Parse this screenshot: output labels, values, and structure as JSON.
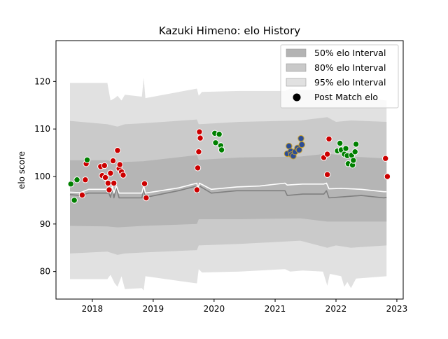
{
  "chart_data": {
    "type": "scatter",
    "title": "Kazuki Himeno: elo History",
    "xlabel": "",
    "ylabel": "elo score",
    "xlim": [
      "2017-05-28",
      "2023-02-08"
    ],
    "ylim": [
      74.2,
      128.6
    ],
    "x_ticks": [
      "2018",
      "2019",
      "2020",
      "2021",
      "2022",
      "2023"
    ],
    "x_tick_dates": [
      "2018-01-01",
      "2019-01-01",
      "2020-01-01",
      "2021-01-01",
      "2022-01-01",
      "2023-01-01"
    ],
    "y_ticks": [
      80,
      90,
      100,
      110,
      120
    ],
    "grid": false,
    "legend_position": "top-right",
    "legend": [
      {
        "label": "50% elo Interval",
        "kind": "band",
        "color": "#b3b3b3"
      },
      {
        "label": "80% elo Interval",
        "kind": "band",
        "color": "#c9c9c9"
      },
      {
        "label": "95% elo Interval",
        "kind": "band",
        "color": "#e1e1e1"
      },
      {
        "label": "Post Match elo",
        "kind": "marker",
        "color": "#000000"
      }
    ],
    "colors": {
      "band95": "#e1e1e1",
      "band80": "#cacaca",
      "band50": "#b5b5b5",
      "median_line": "#7f7f7f",
      "mean_line": "#ffffff",
      "win": "#008000",
      "loss": "#cc0000",
      "highlight": "#2c4d96",
      "highlight_edge": "#c8a02a"
    },
    "series": [
      {
        "role": "band95",
        "points": [
          [
            "2017-08-20",
            78.4,
            119.7
          ],
          [
            "2018-04-01",
            78.4,
            119.7
          ],
          [
            "2018-04-20",
            79.3,
            116.0
          ],
          [
            "2018-05-15",
            77.5,
            116.5
          ],
          [
            "2018-06-01",
            76.8,
            117.0
          ],
          [
            "2018-06-25",
            79.0,
            116.0
          ],
          [
            "2018-07-15",
            76.3,
            117.2
          ],
          [
            "2018-10-25",
            76.5,
            116.8
          ],
          [
            "2018-11-05",
            76.0,
            120.8
          ],
          [
            "2018-11-15",
            79.0,
            116.5
          ],
          [
            "2019-09-20",
            77.5,
            118.5
          ],
          [
            "2019-10-01",
            80.5,
            117.0
          ],
          [
            "2019-10-20",
            79.8,
            117.8
          ],
          [
            "2020-06-01",
            80.0,
            118.0
          ],
          [
            "2021-03-01",
            80.5,
            118.0
          ],
          [
            "2021-04-01",
            80.0,
            118.5
          ],
          [
            "2021-06-15",
            80.2,
            118.2
          ],
          [
            "2021-10-15",
            80.0,
            118.3
          ],
          [
            "2021-11-10",
            77.0,
            119.5
          ],
          [
            "2021-11-25",
            79.5,
            116.5
          ],
          [
            "2022-02-01",
            79.0,
            117.5
          ],
          [
            "2022-02-20",
            76.8,
            116.8
          ],
          [
            "2022-03-10",
            77.8,
            117.2
          ],
          [
            "2022-04-01",
            76.5,
            117.0
          ],
          [
            "2022-05-01",
            78.5,
            116.8
          ],
          [
            "2022-10-31",
            79.0,
            116.0
          ]
        ]
      },
      {
        "role": "band80",
        "points": [
          [
            "2017-08-20",
            83.8,
            111.7
          ],
          [
            "2018-04-01",
            84.2,
            111.0
          ],
          [
            "2018-06-01",
            83.5,
            110.5
          ],
          [
            "2018-07-15",
            83.8,
            111.0
          ],
          [
            "2018-11-01",
            84.0,
            111.2
          ],
          [
            "2019-09-20",
            84.5,
            112.0
          ],
          [
            "2019-10-01",
            85.5,
            111.0
          ],
          [
            "2020-06-01",
            85.8,
            111.5
          ],
          [
            "2021-06-01",
            86.5,
            111.8
          ],
          [
            "2021-11-10",
            85.0,
            112.5
          ],
          [
            "2022-01-01",
            85.5,
            111.5
          ],
          [
            "2022-04-01",
            85.0,
            111.8
          ],
          [
            "2022-10-31",
            85.5,
            111.5
          ]
        ]
      },
      {
        "role": "band50",
        "points": [
          [
            "2017-08-20",
            89.6,
            103.4
          ],
          [
            "2018-04-01",
            89.5,
            103.4
          ],
          [
            "2018-06-01",
            89.3,
            103.0
          ],
          [
            "2018-11-01",
            89.6,
            103.2
          ],
          [
            "2019-09-20",
            90.0,
            104.5
          ],
          [
            "2019-10-01",
            91.0,
            103.5
          ],
          [
            "2020-06-01",
            91.0,
            104.0
          ],
          [
            "2021-06-01",
            91.2,
            104.2
          ],
          [
            "2021-11-10",
            90.5,
            104.8
          ],
          [
            "2022-04-01",
            90.5,
            104.2
          ],
          [
            "2022-10-31",
            90.5,
            103.8
          ]
        ]
      },
      {
        "role": "median",
        "points": [
          [
            "2017-08-20",
            96.2
          ],
          [
            "2017-10-20",
            96.0
          ],
          [
            "2017-12-10",
            96.5
          ],
          [
            "2018-04-10",
            96.5
          ],
          [
            "2018-04-20",
            95.6
          ],
          [
            "2018-05-01",
            97.5
          ],
          [
            "2018-05-10",
            95.5
          ],
          [
            "2018-05-25",
            97.6
          ],
          [
            "2018-06-10",
            95.5
          ],
          [
            "2018-10-25",
            95.5
          ],
          [
            "2018-11-05",
            97.5
          ],
          [
            "2018-11-15",
            95.6
          ],
          [
            "2019-06-01",
            97.0
          ],
          [
            "2019-09-20",
            98.0
          ],
          [
            "2019-09-25",
            96.5
          ],
          [
            "2019-10-05",
            98.0
          ],
          [
            "2019-12-15",
            96.5
          ],
          [
            "2020-05-15",
            97.0
          ],
          [
            "2020-10-01",
            97.0
          ],
          [
            "2021-03-01",
            97.0
          ],
          [
            "2021-03-15",
            96.0
          ],
          [
            "2021-06-15",
            96.3
          ],
          [
            "2021-10-20",
            96.3
          ],
          [
            "2021-11-05",
            97.0
          ],
          [
            "2021-11-20",
            95.5
          ],
          [
            "2022-02-01",
            95.7
          ],
          [
            "2022-06-01",
            96.0
          ],
          [
            "2022-10-15",
            95.5
          ],
          [
            "2022-10-31",
            95.6
          ]
        ]
      },
      {
        "role": "mean",
        "points": [
          [
            "2017-08-20",
            96.7
          ],
          [
            "2017-10-20",
            96.6
          ],
          [
            "2017-12-10",
            97.3
          ],
          [
            "2018-04-10",
            97.3
          ],
          [
            "2018-04-20",
            96.5
          ],
          [
            "2018-05-01",
            98.0
          ],
          [
            "2018-05-10",
            96.5
          ],
          [
            "2018-05-25",
            98.0
          ],
          [
            "2018-06-10",
            96.5
          ],
          [
            "2018-10-25",
            96.5
          ],
          [
            "2018-11-05",
            98.0
          ],
          [
            "2018-11-15",
            96.5
          ],
          [
            "2019-06-01",
            97.6
          ],
          [
            "2019-09-20",
            98.6
          ],
          [
            "2019-09-25",
            97.2
          ],
          [
            "2019-10-05",
            98.6
          ],
          [
            "2019-12-15",
            97.3
          ],
          [
            "2020-05-15",
            97.8
          ],
          [
            "2020-10-01",
            98.0
          ],
          [
            "2021-03-01",
            98.6
          ],
          [
            "2021-03-15",
            98.2
          ],
          [
            "2021-06-15",
            98.4
          ],
          [
            "2021-10-20",
            98.4
          ],
          [
            "2021-11-05",
            98.6
          ],
          [
            "2021-11-20",
            97.4
          ],
          [
            "2022-02-01",
            97.5
          ],
          [
            "2022-06-01",
            97.3
          ],
          [
            "2022-10-15",
            96.8
          ],
          [
            "2022-10-31",
            96.8
          ]
        ]
      }
    ],
    "matches": [
      {
        "x": "2017-08-25",
        "y": 98.4,
        "result": "win"
      },
      {
        "x": "2017-09-15",
        "y": 95.0,
        "result": "win"
      },
      {
        "x": "2017-10-01",
        "y": 99.3,
        "result": "win"
      },
      {
        "x": "2017-11-01",
        "y": 96.1,
        "result": "loss"
      },
      {
        "x": "2017-11-20",
        "y": 99.3,
        "result": "loss"
      },
      {
        "x": "2017-11-25",
        "y": 102.7,
        "result": "loss"
      },
      {
        "x": "2017-12-01",
        "y": 103.5,
        "result": "win"
      },
      {
        "x": "2018-02-20",
        "y": 102.1,
        "result": "loss"
      },
      {
        "x": "2018-03-01",
        "y": 100.2,
        "result": "loss"
      },
      {
        "x": "2018-03-15",
        "y": 102.3,
        "result": "loss"
      },
      {
        "x": "2018-03-20",
        "y": 99.8,
        "result": "loss"
      },
      {
        "x": "2018-04-05",
        "y": 98.6,
        "result": "loss"
      },
      {
        "x": "2018-04-12",
        "y": 97.2,
        "result": "loss"
      },
      {
        "x": "2018-04-20",
        "y": 100.7,
        "result": "loss"
      },
      {
        "x": "2018-05-05",
        "y": 103.3,
        "result": "loss"
      },
      {
        "x": "2018-05-10",
        "y": 98.6,
        "result": "loss"
      },
      {
        "x": "2018-06-01",
        "y": 105.5,
        "result": "loss"
      },
      {
        "x": "2018-06-10",
        "y": 101.7,
        "result": "loss"
      },
      {
        "x": "2018-06-15",
        "y": 102.5,
        "result": "loss"
      },
      {
        "x": "2018-06-25",
        "y": 101.0,
        "result": "loss"
      },
      {
        "x": "2018-07-05",
        "y": 100.3,
        "result": "loss"
      },
      {
        "x": "2018-11-10",
        "y": 98.5,
        "result": "loss"
      },
      {
        "x": "2018-11-20",
        "y": 95.5,
        "result": "loss"
      },
      {
        "x": "2019-09-20",
        "y": 97.2,
        "result": "loss"
      },
      {
        "x": "2019-09-25",
        "y": 101.8,
        "result": "loss"
      },
      {
        "x": "2019-10-01",
        "y": 105.2,
        "result": "loss"
      },
      {
        "x": "2019-10-05",
        "y": 109.4,
        "result": "loss"
      },
      {
        "x": "2019-10-10",
        "y": 108.1,
        "result": "loss"
      },
      {
        "x": "2020-01-05",
        "y": 109.1,
        "result": "win"
      },
      {
        "x": "2020-01-10",
        "y": 107.1,
        "result": "win"
      },
      {
        "x": "2020-02-01",
        "y": 108.9,
        "result": "win"
      },
      {
        "x": "2020-02-10",
        "y": 106.5,
        "result": "win"
      },
      {
        "x": "2020-02-15",
        "y": 105.6,
        "result": "win"
      },
      {
        "x": "2021-03-15",
        "y": 104.8,
        "result": "highlight"
      },
      {
        "x": "2021-03-25",
        "y": 106.4,
        "result": "highlight"
      },
      {
        "x": "2021-04-05",
        "y": 105.3,
        "result": "highlight"
      },
      {
        "x": "2021-04-10",
        "y": 104.6,
        "result": "highlight"
      },
      {
        "x": "2021-04-20",
        "y": 104.3,
        "result": "highlight"
      },
      {
        "x": "2021-05-01",
        "y": 105.2,
        "result": "highlight"
      },
      {
        "x": "2021-05-15",
        "y": 106.0,
        "result": "highlight"
      },
      {
        "x": "2021-05-25",
        "y": 105.6,
        "result": "highlight"
      },
      {
        "x": "2021-06-05",
        "y": 108.0,
        "result": "highlight"
      },
      {
        "x": "2021-06-10",
        "y": 106.7,
        "result": "highlight"
      },
      {
        "x": "2021-10-20",
        "y": 104.0,
        "result": "loss"
      },
      {
        "x": "2021-11-10",
        "y": 104.7,
        "result": "loss"
      },
      {
        "x": "2021-11-10",
        "y": 100.4,
        "result": "loss"
      },
      {
        "x": "2021-11-20",
        "y": 107.9,
        "result": "loss"
      },
      {
        "x": "2022-01-10",
        "y": 105.4,
        "result": "win"
      },
      {
        "x": "2022-01-25",
        "y": 107.0,
        "result": "win"
      },
      {
        "x": "2022-02-01",
        "y": 105.6,
        "result": "win"
      },
      {
        "x": "2022-02-20",
        "y": 104.7,
        "result": "win"
      },
      {
        "x": "2022-03-01",
        "y": 105.9,
        "result": "win"
      },
      {
        "x": "2022-03-10",
        "y": 104.4,
        "result": "win"
      },
      {
        "x": "2022-03-15",
        "y": 102.7,
        "result": "win"
      },
      {
        "x": "2022-04-05",
        "y": 104.5,
        "result": "win"
      },
      {
        "x": "2022-04-10",
        "y": 102.4,
        "result": "win"
      },
      {
        "x": "2022-04-15",
        "y": 103.4,
        "result": "win"
      },
      {
        "x": "2022-04-25",
        "y": 105.2,
        "result": "win"
      },
      {
        "x": "2022-05-01",
        "y": 106.8,
        "result": "win"
      },
      {
        "x": "2022-10-25",
        "y": 103.8,
        "result": "loss"
      },
      {
        "x": "2022-11-05",
        "y": 100.0,
        "result": "loss"
      }
    ]
  }
}
